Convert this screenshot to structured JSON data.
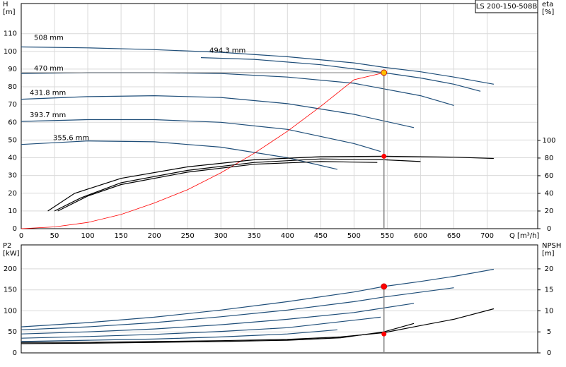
{
  "chart_data": [
    {
      "type": "line",
      "title": "LS 200-150-508B",
      "ylabel": [
        "H",
        "[m]"
      ],
      "y2label": [
        "eta",
        "[%]"
      ],
      "xlabel": "Q [m³/h]",
      "xlim": [
        0,
        776
      ],
      "xticks": [
        0,
        50,
        100,
        150,
        200,
        250,
        300,
        350,
        400,
        450,
        500,
        550,
        600,
        650,
        700
      ],
      "ylim": [
        0,
        127
      ],
      "yticks": [
        0,
        10,
        20,
        30,
        40,
        50,
        60,
        70,
        80,
        90,
        100,
        110
      ],
      "y2lim": [
        0,
        255
      ],
      "y2ticks": [
        0,
        20,
        40,
        60,
        80,
        100
      ],
      "grid": true,
      "series": [
        {
          "name": "508 mm",
          "color": "#1f4e79",
          "x": [
            0,
            100,
            200,
            300,
            400,
            500,
            545,
            600,
            650,
            710
          ],
          "values": [
            102.5,
            102,
            101,
            99.5,
            97,
            93.5,
            91,
            88.5,
            85.5,
            81.5
          ]
        },
        {
          "name": "494.3 mm",
          "color": "#1f4e79",
          "x": [
            270,
            350,
            450,
            545,
            600,
            650,
            690
          ],
          "values": [
            96.5,
            95.5,
            92.5,
            88,
            85,
            81.5,
            77.5
          ]
        },
        {
          "name": "470 mm",
          "color": "#1f4e79",
          "x": [
            0,
            100,
            200,
            300,
            400,
            500,
            600,
            650
          ],
          "values": [
            87.5,
            88,
            88,
            87.5,
            85.5,
            82,
            75,
            69.5
          ]
        },
        {
          "name": "431.8 mm",
          "color": "#1f4e79",
          "x": [
            0,
            100,
            200,
            300,
            400,
            500,
            590
          ],
          "values": [
            73,
            74.5,
            75,
            74,
            70.5,
            64.5,
            57
          ]
        },
        {
          "name": "393.7 mm",
          "color": "#1f4e79",
          "x": [
            0,
            100,
            200,
            300,
            400,
            500,
            540
          ],
          "values": [
            60.5,
            61.5,
            61.5,
            60,
            56,
            48,
            43.5
          ]
        },
        {
          "name": "355.6 mm",
          "color": "#1f4e79",
          "x": [
            0,
            100,
            200,
            300,
            400,
            475
          ],
          "values": [
            47.5,
            49.5,
            49,
            46,
            40,
            33.5
          ]
        },
        {
          "color": "#ff0000",
          "x": [
            0,
            50,
            100,
            150,
            200,
            250,
            300,
            350,
            400,
            450,
            500,
            545
          ],
          "values": [
            0,
            1,
            3.5,
            8,
            14.5,
            22,
            31.5,
            42.5,
            55,
            69,
            84,
            88
          ]
        },
        {
          "color": "#000000",
          "axis": "y2",
          "x": [
            40,
            80,
            150,
            250,
            350,
            450,
            545,
            650,
            710
          ],
          "values": [
            20,
            40,
            57,
            70,
            78,
            81.5,
            82,
            81,
            79.5
          ]
        },
        {
          "color": "#000000",
          "axis": "y2",
          "x": [
            50,
            90,
            150,
            250,
            350,
            450,
            545,
            600
          ],
          "values": [
            20,
            35,
            52,
            66,
            75,
            79,
            78,
            76
          ]
        },
        {
          "color": "#000000",
          "axis": "y2",
          "x": [
            55,
            100,
            150,
            250,
            350,
            450,
            535
          ],
          "values": [
            20,
            37,
            50,
            64,
            73,
            76,
            75
          ]
        }
      ],
      "duty_point": {
        "x": 545,
        "y": 88,
        "y2": 82,
        "color": "#ffc000",
        "color2": "#ff0000"
      }
    },
    {
      "type": "line",
      "ylabel": [
        "P2",
        "[kW]"
      ],
      "y2label": [
        "NPSH",
        "[m]"
      ],
      "xlim": [
        0,
        776
      ],
      "ylim": [
        0,
        257
      ],
      "yticks": [
        0,
        50,
        100,
        150,
        200
      ],
      "y2lim": [
        0,
        25.7
      ],
      "y2ticks": [
        0,
        5,
        10,
        15,
        20
      ],
      "grid": true,
      "series": [
        {
          "color": "#1f4e79",
          "x": [
            0,
            100,
            200,
            300,
            400,
            500,
            545,
            600,
            650,
            710
          ],
          "values": [
            62,
            72,
            85,
            102,
            122,
            145,
            158,
            170,
            182,
            199
          ]
        },
        {
          "color": "#1f4e79",
          "x": [
            0,
            100,
            200,
            300,
            400,
            500,
            545,
            650
          ],
          "values": [
            55,
            62,
            72,
            86,
            102,
            122,
            133,
            155
          ]
        },
        {
          "color": "#1f4e79",
          "x": [
            0,
            100,
            200,
            300,
            400,
            500,
            590
          ],
          "values": [
            45,
            50,
            57,
            67,
            80,
            96,
            118
          ]
        },
        {
          "color": "#1f4e79",
          "x": [
            0,
            100,
            200,
            300,
            400,
            540
          ],
          "values": [
            35,
            39,
            44,
            51,
            60,
            85
          ]
        },
        {
          "color": "#1f4e79",
          "x": [
            0,
            100,
            200,
            300,
            400,
            475
          ],
          "values": [
            27,
            30,
            33,
            38,
            45,
            55
          ]
        },
        {
          "color": "#000000",
          "axis": "y2",
          "x": [
            0,
            100,
            200,
            300,
            400,
            480,
            545,
            600,
            650,
            710
          ],
          "values": [
            2.5,
            2.5,
            2.7,
            2.9,
            3.2,
            3.8,
            4.8,
            6.5,
            8,
            10.5
          ]
        },
        {
          "color": "#000000",
          "axis": "y2",
          "x": [
            0,
            100,
            200,
            300,
            400,
            480,
            545,
            590
          ],
          "values": [
            2.2,
            2.3,
            2.5,
            2.7,
            3,
            3.6,
            5,
            7
          ]
        }
      ],
      "duty_point": {
        "x": 545,
        "y": 158,
        "y2": 4.5,
        "color": "#ff0000",
        "color2": "#ff0000"
      }
    }
  ]
}
